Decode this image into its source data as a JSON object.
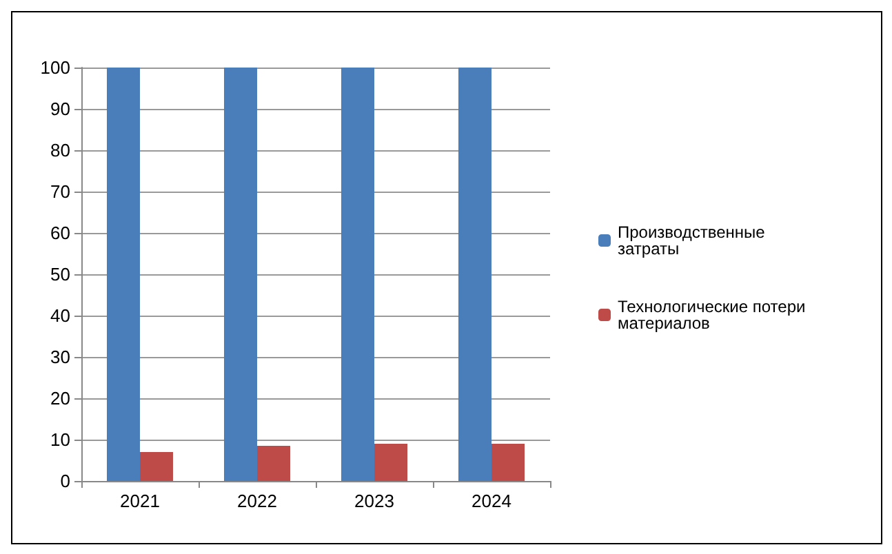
{
  "chart_data": {
    "type": "bar",
    "categories": [
      "2021",
      "2022",
      "2023",
      "2024"
    ],
    "series": [
      {
        "name": "Производственные затраты",
        "color": "#4a7ebb",
        "values": [
          100,
          100,
          100,
          100
        ]
      },
      {
        "name": "Технологические потери материалов",
        "color": "#be4b48",
        "values": [
          7,
          8.5,
          9,
          9
        ]
      }
    ],
    "ylim": [
      0,
      100
    ],
    "yticks": [
      0,
      10,
      20,
      30,
      40,
      50,
      60,
      70,
      80,
      90,
      100
    ],
    "grid": "y",
    "legend": "right"
  }
}
